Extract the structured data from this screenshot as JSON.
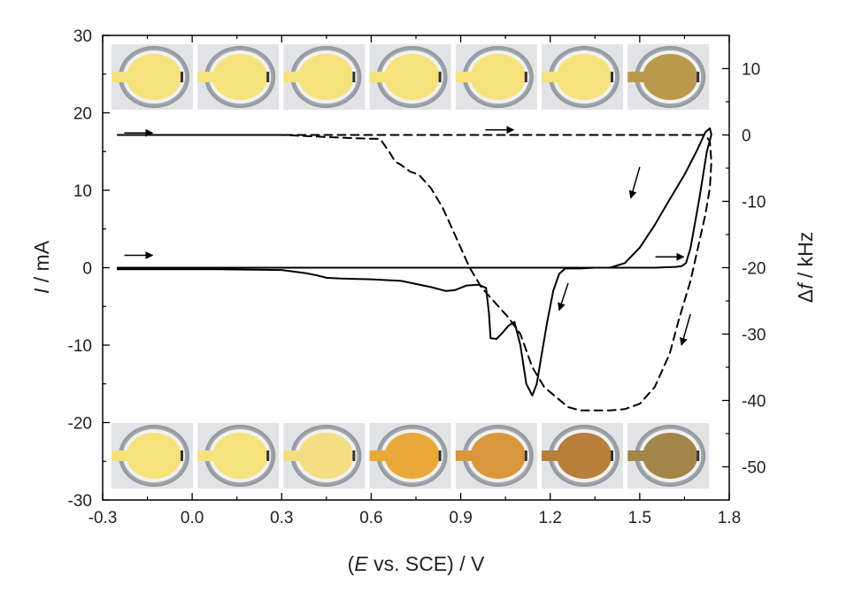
{
  "chart_data": {
    "type": "line",
    "title": "",
    "xlabel": {
      "open": "(",
      "italic": "E",
      "rest": " vs. SCE) / V"
    },
    "ylabel_left": {
      "italic": "I",
      "rest": " / mA"
    },
    "ylabel_right": {
      "prefix": "Δ",
      "italic": "f",
      "rest": " / kHz"
    },
    "xlim": [
      -0.3,
      1.8
    ],
    "ylim_left": [
      -30,
      30
    ],
    "ylim_right": [
      -55,
      15
    ],
    "x_ticks": [
      "-0.3",
      "0.0",
      "0.3",
      "0.6",
      "0.9",
      "1.2",
      "1.5",
      "1.8"
    ],
    "y_left_ticks": [
      "-30",
      "-20",
      "-10",
      "0",
      "10",
      "20",
      "30"
    ],
    "y_right_ticks": [
      "-50",
      "-40",
      "-30",
      "-20",
      "-10",
      "0",
      "10"
    ],
    "grid": false,
    "legend": "none",
    "series": [
      {
        "axis": "left",
        "style": "solid",
        "x": [
          -0.25,
          0.1,
          0.3,
          0.38,
          0.42,
          0.45,
          0.5,
          0.6,
          0.7,
          0.8,
          0.85,
          0.88,
          0.92,
          0.96,
          0.985,
          0.995,
          1.0,
          1.02,
          1.04,
          1.06,
          1.08,
          1.1,
          1.12,
          1.14,
          1.155,
          1.17,
          1.19,
          1.21,
          1.23,
          1.25,
          1.27,
          1.3,
          1.35,
          1.4,
          1.45,
          1.5,
          1.55,
          1.6,
          1.65,
          1.69,
          1.72,
          1.735,
          1.74,
          1.725,
          1.7,
          1.67,
          1.655,
          1.64,
          1.62,
          1.55,
          1.4,
          1.0,
          0.5,
          0.0,
          -0.25
        ],
        "y": [
          -0.2,
          -0.2,
          -0.3,
          -0.7,
          -1.0,
          -1.3,
          -1.4,
          -1.5,
          -1.7,
          -2.5,
          -3.0,
          -2.9,
          -2.3,
          -2.2,
          -2.6,
          -6.0,
          -9.1,
          -9.2,
          -8.4,
          -7.5,
          -7.0,
          -10.0,
          -15.0,
          -16.5,
          -15.0,
          -11.5,
          -7.0,
          -3.0,
          -0.8,
          -0.1,
          -0.1,
          -0.1,
          0.0,
          0.0,
          0.6,
          2.6,
          5.5,
          8.8,
          12.0,
          15.0,
          17.5,
          18.0,
          17.2,
          15.0,
          9.0,
          2.5,
          0.6,
          0.2,
          0.1,
          0.0,
          0.0,
          0.0,
          0.0,
          0.0,
          0.0
        ]
      },
      {
        "axis": "right",
        "style": "dashed",
        "x": [
          -0.25,
          -0.2,
          0.1,
          0.3,
          0.45,
          0.55,
          0.63,
          0.66,
          0.68,
          0.7,
          0.73,
          0.76,
          0.8,
          0.84,
          0.87,
          0.9,
          0.93,
          0.97,
          1.02,
          1.06,
          1.1,
          1.14,
          1.18,
          1.22,
          1.26,
          1.3,
          1.35,
          1.4,
          1.45,
          1.5,
          1.55,
          1.6,
          1.63,
          1.67,
          1.7,
          1.72,
          1.735,
          1.74,
          1.735,
          1.72,
          1.7,
          1.68,
          1.64,
          1.6,
          1.55,
          1.5,
          1.45,
          1.4,
          1.3,
          1.0,
          0.6,
          0.2,
          -0.25
        ],
        "y": [
          0,
          0,
          0,
          0,
          -0.3,
          -0.5,
          -0.6,
          -2.5,
          -4.0,
          -4.5,
          -5.5,
          -6.0,
          -8.0,
          -11.0,
          -14.0,
          -17.0,
          -20.0,
          -23.0,
          -25.5,
          -27.5,
          -30.0,
          -35.0,
          -38.0,
          -39.5,
          -41.0,
          -41.5,
          -41.5,
          -41.5,
          -41.3,
          -40.5,
          -38.0,
          -33.0,
          -28.0,
          -22.0,
          -16.0,
          -12.0,
          -8.0,
          -4.0,
          -1.0,
          0.0,
          0.0,
          0.0,
          0.0,
          0.0,
          0.0,
          0.0,
          0.0,
          0.0,
          0.0,
          0.0,
          0.0,
          0.0,
          0.0
        ]
      }
    ],
    "annotations": {
      "arrows_right": [
        {
          "x": -0.18,
          "y": 17.4
        },
        {
          "x": 1.03,
          "y": 17.8
        },
        {
          "x": -0.18,
          "y": 1.6
        },
        {
          "x": 1.6,
          "y": 1.4
        }
      ],
      "arrows_down": [
        {
          "x": 1.5,
          "y": 13.0,
          "x2": 1.47,
          "y2": 9.0
        },
        {
          "x": 1.26,
          "y": -2.0,
          "x2": 1.23,
          "y2": -5.5
        },
        {
          "x": 1.67,
          "y": -6.0,
          "x2": 1.64,
          "y2": -10.0
        }
      ]
    }
  },
  "photos": {
    "top": [
      {
        "film": "#f6e27c",
        "state": "pale-yellow"
      },
      {
        "film": "#f6e27c",
        "state": "pale-yellow"
      },
      {
        "film": "#f6e27c",
        "state": "pale-yellow"
      },
      {
        "film": "#f6e27c",
        "state": "pale-yellow"
      },
      {
        "film": "#f6e27c",
        "state": "pale-yellow"
      },
      {
        "film": "#f6e27c",
        "state": "pale-yellow"
      },
      {
        "film": "#b99a4c",
        "state": "brown"
      }
    ],
    "bottom": [
      {
        "film": "#f6e27c",
        "state": "pale-yellow"
      },
      {
        "film": "#f6e27c",
        "state": "pale-yellow"
      },
      {
        "film": "#f4dd82",
        "state": "pale-yellow"
      },
      {
        "film": "#eaa83a",
        "state": "orange"
      },
      {
        "film": "#d9973d",
        "state": "orange-brown"
      },
      {
        "film": "#b97e3c",
        "state": "brown"
      },
      {
        "film": "#a3854a",
        "state": "dark-brown"
      }
    ]
  },
  "colors": {
    "line": "#000000",
    "electrode_ring": "#9aa0a6",
    "electrode_frame": "#e2e3e6"
  }
}
